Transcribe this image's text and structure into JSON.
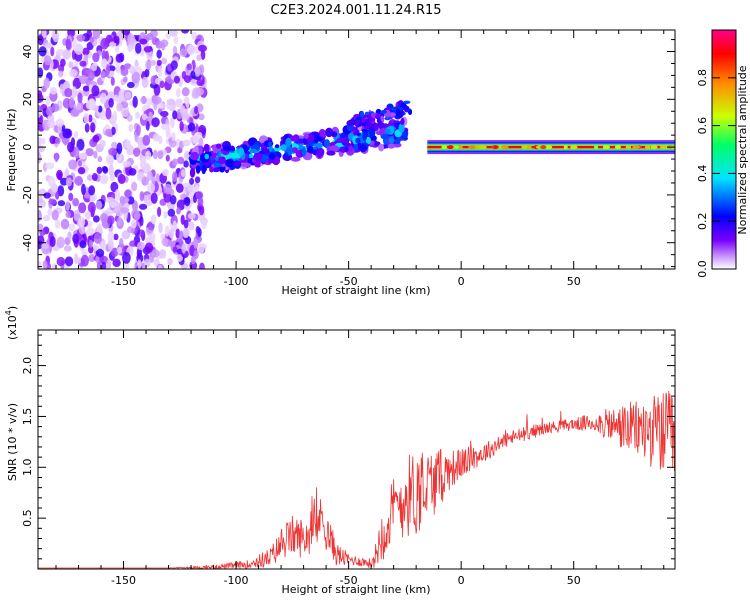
{
  "figure": {
    "title": "C2E3.2024.001.11.24.R15"
  },
  "chart_data": [
    {
      "type": "heatmap",
      "title": "C2E3.2024.001.11.24.R15",
      "xlabel": "Height of straight line (km)",
      "ylabel": "Frequency (Hz)",
      "xlim": [
        -188,
        95
      ],
      "ylim": [
        -51,
        49
      ],
      "x_ticks": [
        -150,
        -100,
        -50,
        0,
        50
      ],
      "y_ticks": [
        -40,
        -20,
        0,
        20,
        40
      ],
      "colorbar": {
        "label": "Normalized spectral amplitude",
        "range": [
          0,
          1
        ],
        "ticks": [
          "0.0",
          "0.2",
          "0.4",
          "0.6",
          "0.8"
        ],
        "colors": [
          "#ffffff",
          "#cc99ff",
          "#7a00ff",
          "#0000ff",
          "#00e5ff",
          "#00ff66",
          "#ccff00",
          "#ff8800",
          "#ff0000",
          "#ff0088"
        ]
      },
      "features": [
        {
          "name": "noise region",
          "x_range": [
            -188,
            -120
          ],
          "freq_range": [
            -51,
            49
          ],
          "amplitude": 0.1
        },
        {
          "name": "lower branch",
          "x_start": -120,
          "x_end": -25,
          "freq_start": -6,
          "freq_end": 6,
          "amplitude": 0.4
        },
        {
          "name": "upper branch",
          "x_start": -50,
          "x_end": -22,
          "freq_start": 10,
          "freq_end": 17,
          "amplitude": 0.2
        },
        {
          "name": "steady line",
          "x_start": -15,
          "x_end": 95,
          "freq": 0,
          "amplitude": 0.9
        }
      ]
    },
    {
      "type": "line",
      "xlabel": "Height of straight line (km)",
      "ylabel": "SNR (10 * v/v)",
      "y_scale_label": "(x10",
      "y_scale_exp": "4",
      "xlim": [
        -188,
        95
      ],
      "ylim": [
        0,
        2.35
      ],
      "x_ticks": [
        -150,
        -100,
        -50,
        0,
        50
      ],
      "y_ticks": [
        0.5,
        1.0,
        1.5,
        2.0
      ],
      "y_tick_labels": [
        "0.5",
        "1.0",
        "1.5",
        "2.0"
      ],
      "color": "#ee3333",
      "envelope_x": [
        -188,
        -130,
        -110,
        -95,
        -85,
        -80,
        -75,
        -70,
        -65,
        -62,
        -60,
        -55,
        -50,
        -45,
        -40,
        -38,
        -35,
        -30,
        -25,
        -20,
        -15,
        -10,
        -5,
        0,
        10,
        20,
        30,
        40,
        50,
        60,
        70,
        80,
        88,
        92,
        95
      ],
      "envelope_y": [
        0.01,
        0.01,
        0.02,
        0.05,
        0.12,
        0.25,
        0.35,
        0.32,
        0.4,
        0.55,
        0.4,
        0.15,
        0.1,
        0.08,
        0.06,
        0.15,
        0.4,
        0.6,
        0.75,
        0.8,
        0.85,
        0.92,
        1.0,
        1.05,
        1.15,
        1.28,
        1.35,
        1.4,
        1.43,
        1.45,
        1.42,
        1.4,
        1.38,
        1.35,
        1.3
      ],
      "noise_y": [
        0,
        0,
        0.02,
        0.04,
        0.1,
        0.15,
        0.2,
        0.2,
        0.2,
        0.2,
        0.2,
        0.12,
        0.06,
        0.05,
        0.05,
        0.12,
        0.3,
        0.35,
        0.4,
        0.45,
        0.38,
        0.3,
        0.2,
        0.15,
        0.1,
        0.08,
        0.07,
        0.06,
        0.06,
        0.1,
        0.22,
        0.3,
        0.4,
        0.45,
        0.5
      ]
    }
  ]
}
